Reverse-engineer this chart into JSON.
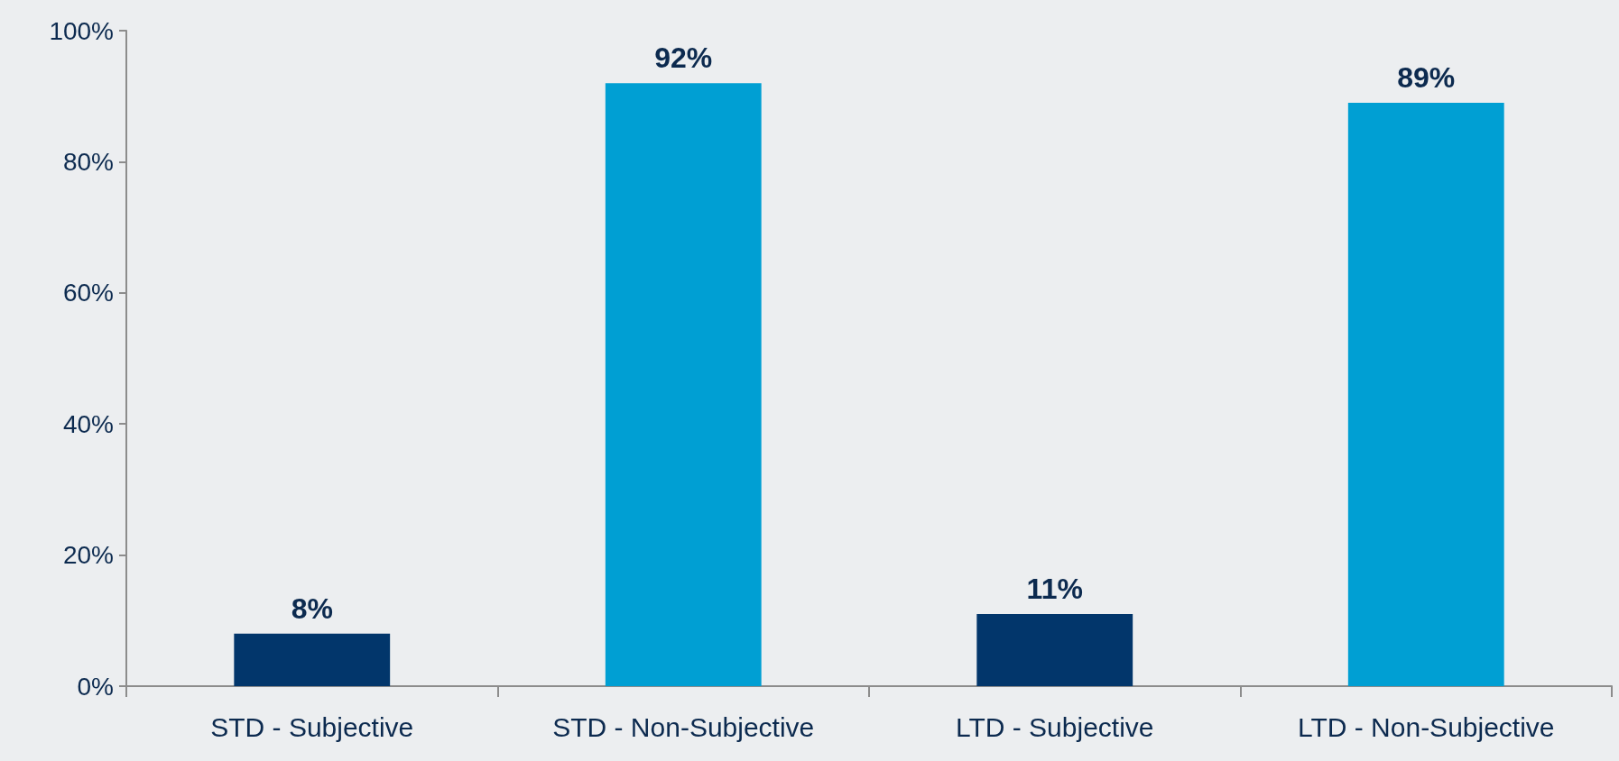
{
  "chart_data": {
    "type": "bar",
    "categories": [
      "STD - Subjective",
      "STD - Non-Subjective",
      "LTD - Subjective",
      "LTD - Non-Subjective"
    ],
    "values": [
      8,
      92,
      11,
      89
    ],
    "colors": [
      "#02366b",
      "#009fd3",
      "#02366b",
      "#009fd3"
    ],
    "value_labels": [
      "8%",
      "92%",
      "11%",
      "89%"
    ],
    "ylim": [
      0,
      100
    ],
    "yticks": [
      {
        "value": 0,
        "label": "0%"
      },
      {
        "value": 20,
        "label": "20%"
      },
      {
        "value": 40,
        "label": "40%"
      },
      {
        "value": 60,
        "label": "60%"
      },
      {
        "value": 80,
        "label": "80%"
      },
      {
        "value": 100,
        "label": "100%"
      }
    ],
    "grid": false
  }
}
